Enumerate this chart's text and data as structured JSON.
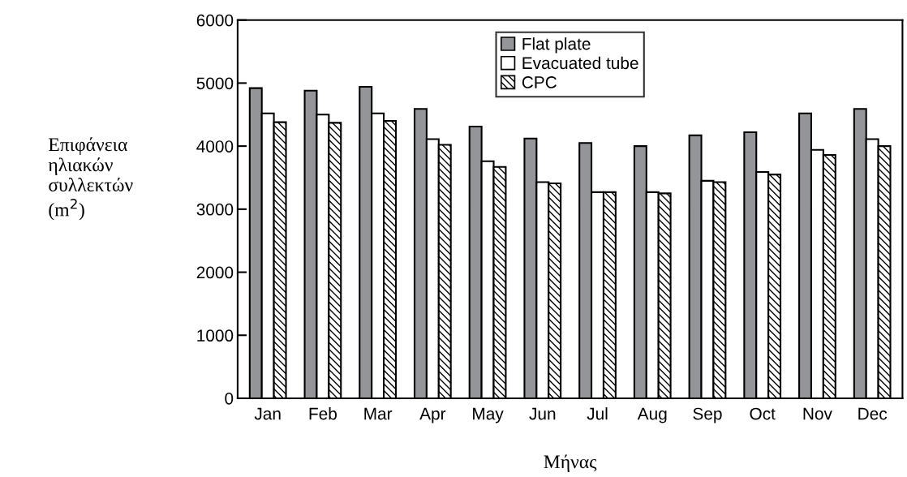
{
  "chart_data": {
    "type": "bar",
    "xlabel": "Μήνας",
    "ylabel": "Επιφάνεια\nηλιακών\nσυλλεκτών\n(m$^{2}$)",
    "categories": [
      "Jan",
      "Feb",
      "Mar",
      "Apr",
      "May",
      "Jun",
      "Jul",
      "Aug",
      "Sep",
      "Oct",
      "Nov",
      "Dec"
    ],
    "series": [
      {
        "name": "Flat plate",
        "color": "#939598",
        "values": [
          4920,
          4880,
          4940,
          4590,
          4310,
          4120,
          4050,
          4000,
          4170,
          4220,
          4520,
          4590
        ]
      },
      {
        "name": "Evacuated tube",
        "color": "#ffffff",
        "values": [
          4520,
          4500,
          4520,
          4110,
          3760,
          3430,
          3270,
          3270,
          3450,
          3590,
          3940,
          4110
        ]
      },
      {
        "name": "CPC",
        "color": "#000000",
        "values": [
          4380,
          4370,
          4400,
          4020,
          3670,
          3410,
          3270,
          3250,
          3430,
          3550,
          3860,
          4000
        ]
      }
    ],
    "ylim": [
      0,
      6000
    ],
    "yticks": [
      0,
      1000,
      2000,
      3000,
      4000,
      5000,
      6000
    ],
    "grid": false,
    "legend": "top center"
  }
}
